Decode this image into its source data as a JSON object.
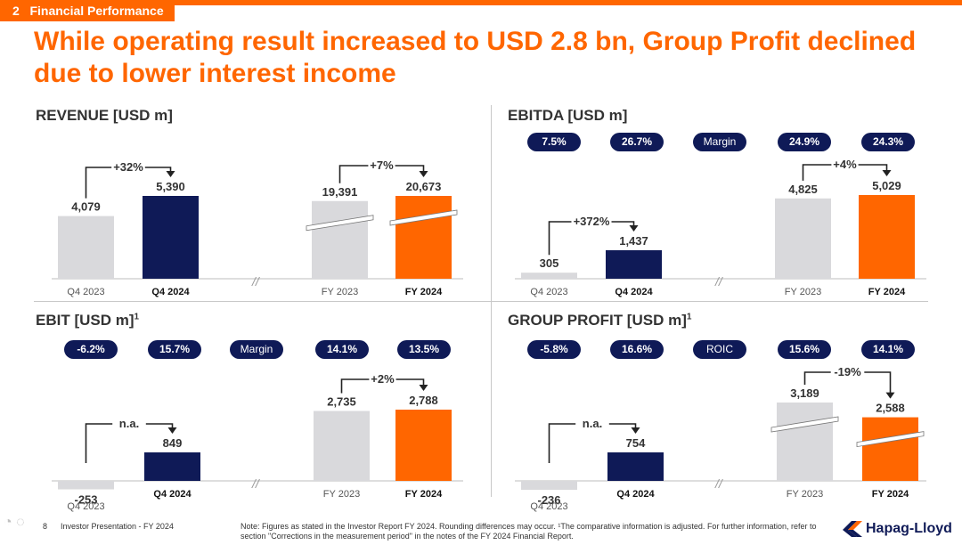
{
  "header": {
    "section_number": "2",
    "section_label": "Financial Performance"
  },
  "headline": "While operating result increased to USD 2.8 bn, Group Profit declined due to lower interest income",
  "colors": {
    "accent": "#ff6600",
    "navy": "#0f1a57",
    "grey": "#d9d9dc"
  },
  "chart_data": [
    {
      "type": "bar",
      "title": "REVENUE [USD m]",
      "title_sup": "",
      "categories": [
        "Q4 2023",
        "Q4 2024",
        "FY 2023",
        "FY 2024"
      ],
      "values": [
        4079,
        5390,
        19391,
        20673
      ],
      "value_labels": [
        "4,079",
        "5,390",
        "19,391",
        "20,673"
      ],
      "axis_breaks": [
        false,
        false,
        true,
        true
      ],
      "changes": {
        "quarter": "+32%",
        "year": "+7%"
      },
      "metric_label": null,
      "metric_values": null
    },
    {
      "type": "bar",
      "title": "EBITDA [USD m]",
      "title_sup": "",
      "categories": [
        "Q4 2023",
        "Q4 2024",
        "FY 2023",
        "FY 2024"
      ],
      "values": [
        305,
        1437,
        4825,
        5029
      ],
      "value_labels": [
        "305",
        "1,437",
        "4,825",
        "5,029"
      ],
      "axis_breaks": [
        false,
        false,
        false,
        false
      ],
      "changes": {
        "quarter": "+372%",
        "year": "+4%"
      },
      "metric_label": "Margin",
      "metric_values": [
        "7.5%",
        "26.7%",
        "24.9%",
        "24.3%"
      ]
    },
    {
      "type": "bar",
      "title": "EBIT [USD m]",
      "title_sup": "1",
      "categories": [
        "Q4 2023",
        "Q4 2024",
        "FY 2023",
        "FY 2024"
      ],
      "values": [
        -253,
        849,
        2735,
        2788
      ],
      "value_labels": [
        "-253",
        "849",
        "2,735",
        "2,788"
      ],
      "axis_breaks": [
        false,
        false,
        false,
        false
      ],
      "changes": {
        "quarter": "n.a.",
        "year": "+2%"
      },
      "metric_label": "Margin",
      "metric_values": [
        "-6.2%",
        "15.7%",
        "14.1%",
        "13.5%"
      ]
    },
    {
      "type": "bar",
      "title": "GROUP PROFIT [USD m]",
      "title_sup": "1",
      "categories": [
        "Q4 2023",
        "Q4 2024",
        "FY 2023",
        "FY 2024"
      ],
      "values": [
        -236,
        754,
        3189,
        2588
      ],
      "value_labels": [
        "-236",
        "754",
        "3,189",
        "2,588"
      ],
      "axis_breaks": [
        false,
        false,
        true,
        true
      ],
      "changes": {
        "quarter": "n.a.",
        "year": "-19%"
      },
      "metric_label": "ROIC",
      "metric_values": [
        "-5.8%",
        "16.6%",
        "15.6%",
        "14.1%"
      ]
    }
  ],
  "footer": {
    "page": "8",
    "presentation": "Investor Presentation - FY 2024",
    "note_line1": "Note: Figures as stated in the Investor Report FY 2024. Rounding differences may occur. ¹The comparative information is adjusted. For further information, refer to",
    "note_line2": "section \"Corrections in the measurement period\" in the notes of the FY 2024 Financial Report."
  },
  "logo": {
    "text": "Hapag-Lloyd"
  }
}
